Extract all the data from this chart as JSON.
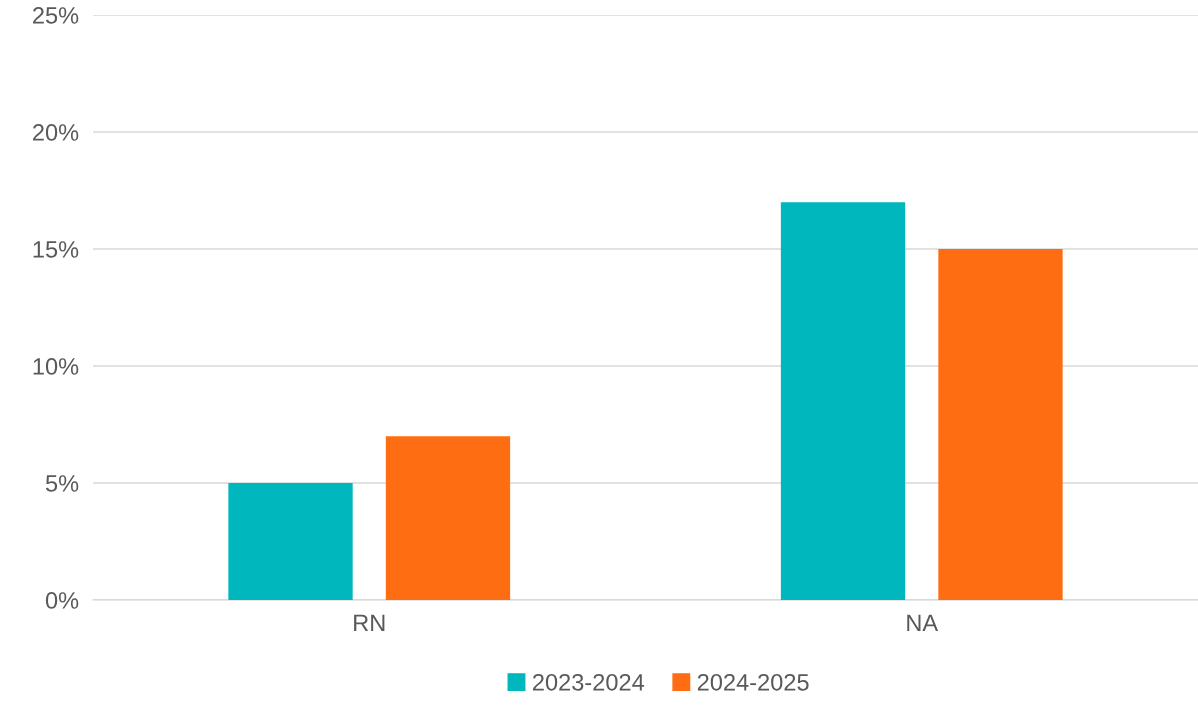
{
  "chart_data": {
    "type": "bar",
    "categories": [
      "RN",
      "NA"
    ],
    "series": [
      {
        "name": "2023-2024",
        "color": "#00b7bd",
        "values": [
          5,
          17
        ]
      },
      {
        "name": "2024-2025",
        "color": "#ff6d12",
        "values": [
          7,
          15
        ]
      }
    ],
    "ylim": [
      0,
      25
    ],
    "yticks": [
      {
        "value": 0,
        "label": "0%"
      },
      {
        "value": 5,
        "label": "5%"
      },
      {
        "value": 10,
        "label": "10%"
      },
      {
        "value": 15,
        "label": "15%"
      },
      {
        "value": 20,
        "label": "20%"
      },
      {
        "value": 25,
        "label": "25%"
      }
    ],
    "grid": "y",
    "legend": "bottom"
  }
}
